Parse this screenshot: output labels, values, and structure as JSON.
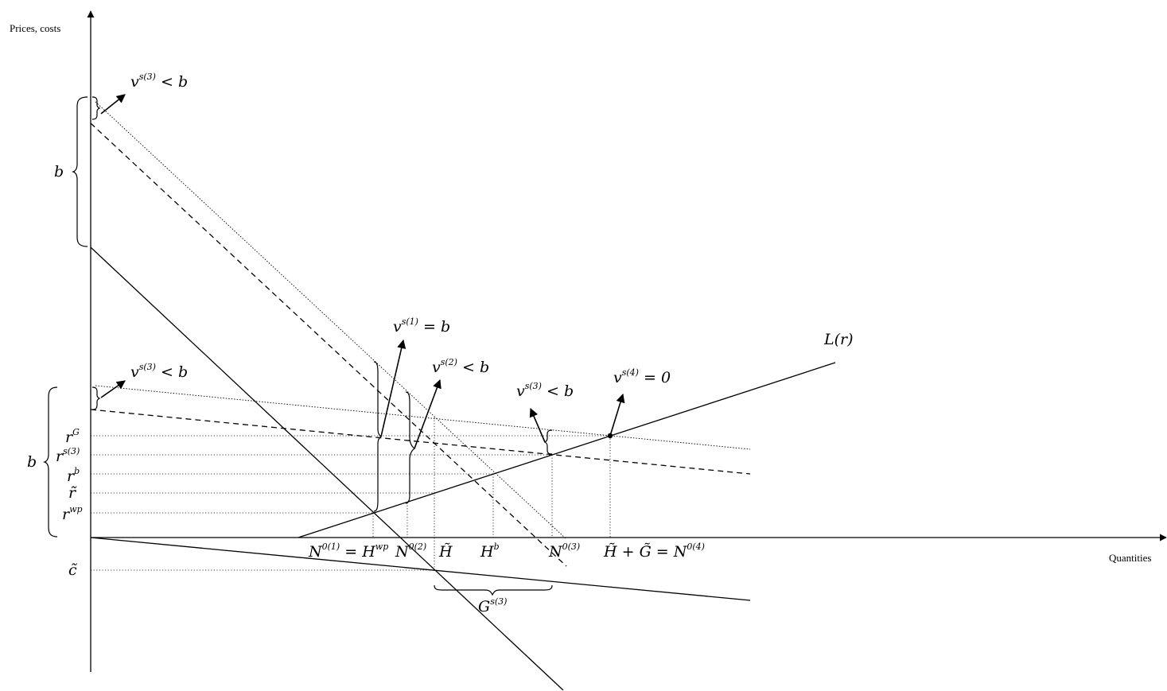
{
  "axes": {
    "y_title": "Prices, costs",
    "x_title": "Quantities"
  },
  "left_labels": {
    "b_upper": "b",
    "b_lower": "b",
    "rG": "r",
    "rG_sup": "G",
    "rs3": "r",
    "rs3_sup": "s(3)",
    "rb": "r",
    "rb_sup": "b",
    "rtilde": "r̃",
    "rwp": "r",
    "rwp_sup": "wp",
    "ctilde": "c̃"
  },
  "x_labels": {
    "n01": "N",
    "n01_sup": "0(1)",
    "n01_eq": " = H",
    "n01_eq_sup": "wp",
    "n02": "N",
    "n02_sup": "0(2)",
    "htilde": "H̃",
    "hb": "H",
    "hb_sup": "b",
    "n03": "N",
    "n03_sup": "0(3)",
    "n04_lhs": "H̃ + G̃ = N",
    "n04_sup": "0(4)",
    "g": "G",
    "g_sup": "s(3)"
  },
  "annotations": {
    "v3_top": "v",
    "v3_top_sup": "s(3)",
    "v3_top_rhs": " < b",
    "v3_mid": "v",
    "v3_mid_sup": "s(3)",
    "v3_mid_rhs": " < b",
    "v1": "v",
    "v1_sup": "s(1)",
    "v1_rhs": " = b",
    "v2": "v",
    "v2_sup": "s(2)",
    "v2_rhs": " < b",
    "v3_right": "v",
    "v3_right_sup": "s(3)",
    "v3_right_rhs": " < b",
    "v4": "v",
    "v4_sup": "s(4)",
    "v4_rhs": " = 0",
    "L": "L(r)"
  }
}
